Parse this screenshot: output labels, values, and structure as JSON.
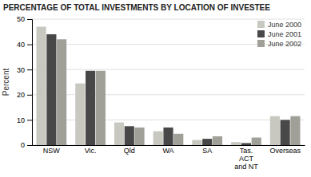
{
  "chart_data": {
    "type": "bar",
    "title": "PERCENTAGE OF TOTAL INVESTMENTS BY LOCATION OF INVESTEE",
    "y_label": "Percent",
    "categories": [
      "NSW",
      "Vic.",
      "Qld",
      "WA",
      "SA",
      "Tas.\nACT\nand NT",
      "Overseas"
    ],
    "series": [
      {
        "name": "June 2000",
        "color": "#c8c8c0",
        "values": [
          47,
          24.5,
          9,
          5.5,
          2,
          1.2,
          11.5
        ]
      },
      {
        "name": "June 2001",
        "color": "#484848",
        "values": [
          44,
          29.5,
          7.5,
          7,
          2.5,
          0.8,
          10
        ]
      },
      {
        "name": "June 2002",
        "color": "#a0a098",
        "values": [
          42,
          29.5,
          7,
          4.5,
          3.5,
          3,
          11.5
        ]
      }
    ],
    "ylim": [
      0,
      50
    ],
    "yticks": [
      0,
      10,
      20,
      30,
      40,
      50
    ],
    "grid": true,
    "legend": "upper right"
  }
}
